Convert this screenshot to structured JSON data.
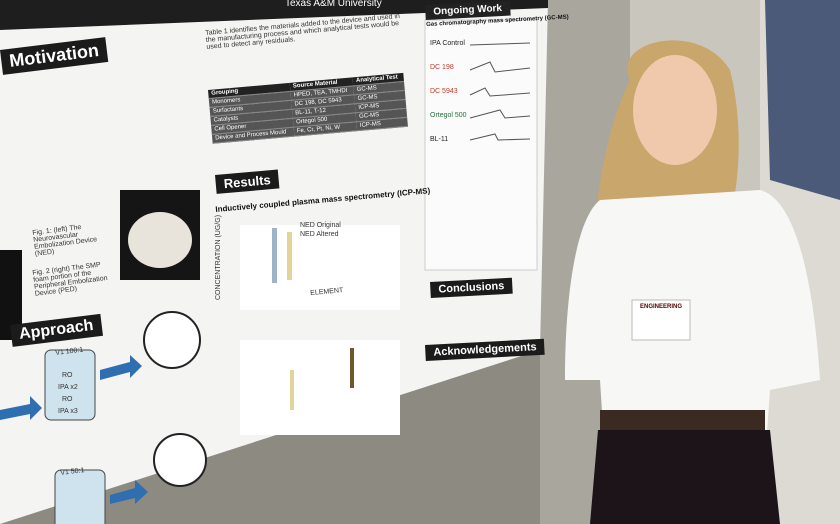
{
  "poster": {
    "university": "Texas A&M University",
    "motivation": {
      "title": "Motivation",
      "fig1": "Fig. 1: (left) The Neurovascular Embolization Device (NED)",
      "fig2": "Fig. 2 (right) The SMP foam portion of the Peripheral Embolization Device (PED)"
    },
    "approach": {
      "title": "Approach",
      "vial1": "V1 100:1",
      "vial2": "V1 50:1",
      "solvents": [
        "RO",
        "IPA x2",
        "RO",
        "IPA x3"
      ]
    },
    "table": {
      "caption": "Table 1 identifies the materials added to the device and used in the manufacturing process and which analytical tests would be used to detect any residuals.",
      "rows": [
        [
          "Grouping",
          "Source Material",
          "Analytical Test"
        ],
        [
          "Monomers",
          "HPED, TEA, TMHDI",
          "GC-MS"
        ],
        [
          "Surfactants",
          "DC 198, DC 5943",
          "GC-MS"
        ],
        [
          "Catalysts",
          "BL-11, T-12",
          "ICP-MS"
        ],
        [
          "Cell Opener",
          "Ortegol 500",
          "GC-MS"
        ],
        [
          "Device and Process Mould",
          "Fe, Cr, Pt, Ni, W",
          "ICP-MS"
        ]
      ]
    },
    "results": {
      "title": "Results",
      "subtitle": "Inductively coupled plasma mass spectrometry (ICP-MS)",
      "y_label": "CONCENTRATION (UG/G)",
      "x_label": "ELEMENT",
      "legend": [
        "NED Original",
        "NED Altered"
      ]
    },
    "ongoing": {
      "title": "Ongoing Work",
      "subtitle": "Gas chromatography mass spectrometry (GC-MS)",
      "traces": [
        "IPA Control",
        "DC 198",
        "DC 5943",
        "Ortegol 500",
        "BL-11"
      ]
    },
    "conclusions": "Conclusions",
    "acknowledgements": "Acknowledgements"
  },
  "badge": "ENGINEERING"
}
